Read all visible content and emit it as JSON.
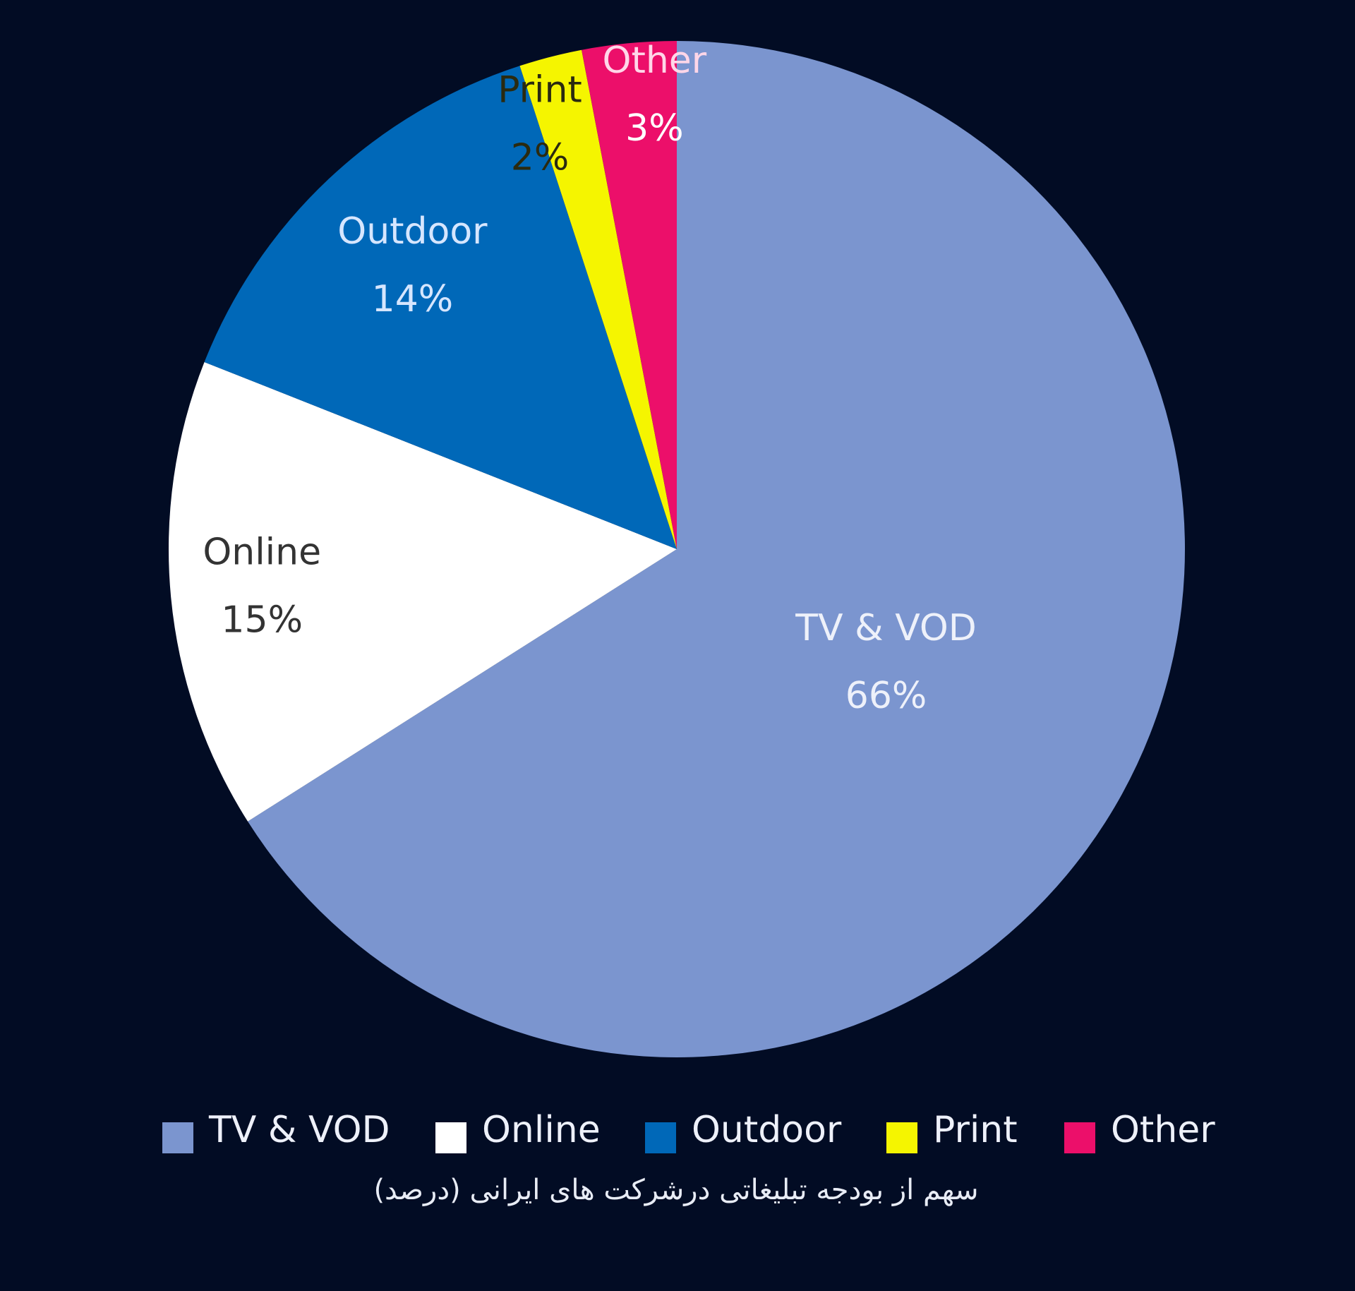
{
  "chart_data": {
    "type": "pie",
    "title": "سهم از  بودجه تبلیغاتی درشرکت های ایرانی (درصد)",
    "categories": [
      "TV & VOD",
      "Online",
      "Outdoor",
      "Print",
      "Other"
    ],
    "values": [
      66,
      15,
      14,
      2,
      3
    ],
    "value_labels": [
      "66%",
      "15%",
      "14%",
      "2%",
      "3%"
    ],
    "colors": [
      "#7b95cf",
      "#ffffff",
      "#0068b8",
      "#f5f500",
      "#ec0f6a"
    ],
    "legend": "bottom"
  }
}
